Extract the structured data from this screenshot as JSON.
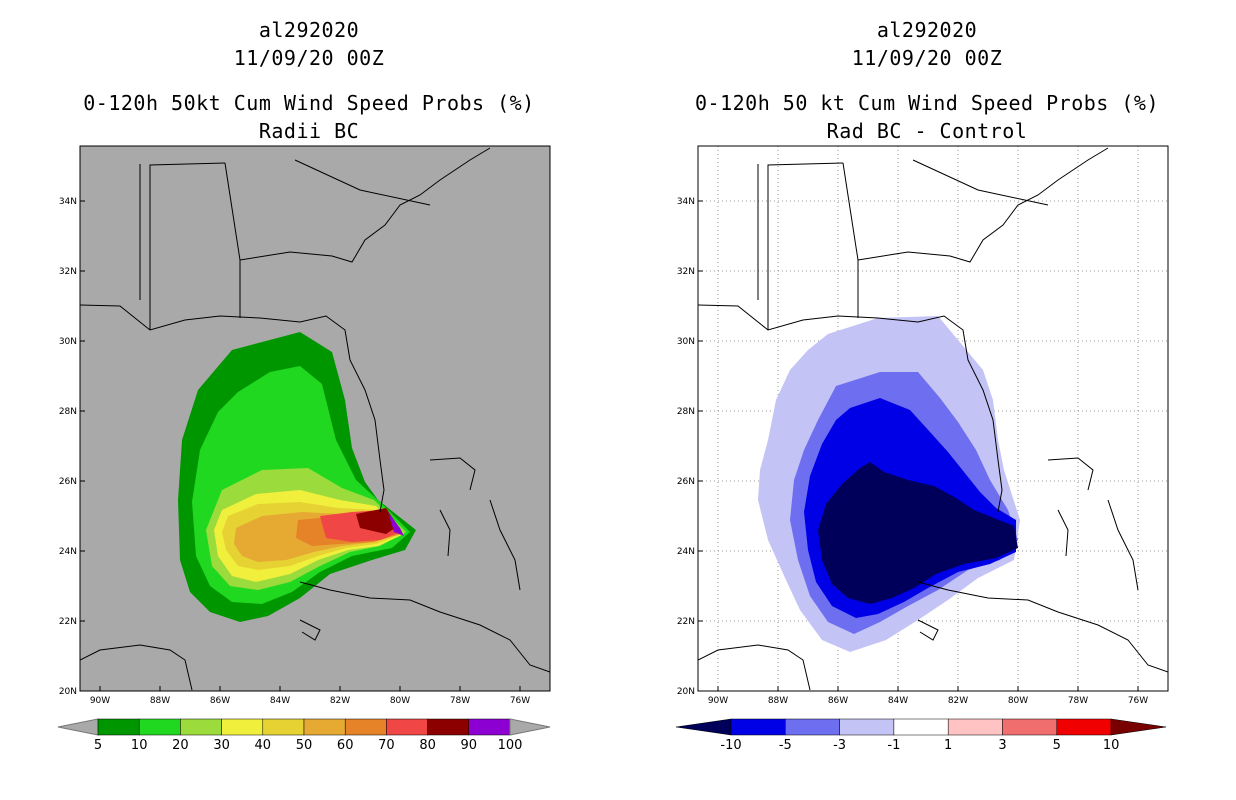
{
  "panels": [
    {
      "storm_id": "al292020",
      "datetime": "11/09/20 00Z",
      "title": "0-120h 50kt Cum Wind Speed Probs (%)",
      "subtitle": "Radii BC",
      "background_color": "#a9a9a9",
      "grid": false,
      "colorbar": {
        "labels": [
          "5",
          "10",
          "20",
          "30",
          "40",
          "50",
          "60",
          "70",
          "80",
          "90",
          "100"
        ],
        "colors": [
          "#009600",
          "#1fd81f",
          "#9bdc3c",
          "#f0f03c",
          "#e6d232",
          "#e6aa32",
          "#e68228",
          "#f04646",
          "#8c0000",
          "#8c00d2"
        ]
      }
    },
    {
      "storm_id": "al292020",
      "datetime": "11/09/20 00Z",
      "title": "0-120h 50 kt Cum Wind Speed Probs (%)",
      "subtitle": "Rad BC - Control",
      "background_color": "#ffffff",
      "grid": true,
      "colorbar": {
        "labels": [
          "-10",
          "-5",
          "-3",
          "-1",
          "1",
          "3",
          "5",
          "10"
        ],
        "colors": [
          "#00005a",
          "#0000e6",
          "#6e6ef0",
          "#c3c3f5",
          "#ffffff",
          "#ffc3c3",
          "#f06e6e",
          "#f00000",
          "#780000"
        ]
      }
    }
  ],
  "axes": {
    "lon_labels": [
      "90W",
      "88W",
      "86W",
      "84W",
      "82W",
      "80W",
      "78W",
      "76W"
    ],
    "lat_labels": [
      "20N",
      "22N",
      "24N",
      "26N",
      "28N",
      "30N",
      "32N",
      "34N"
    ]
  }
}
